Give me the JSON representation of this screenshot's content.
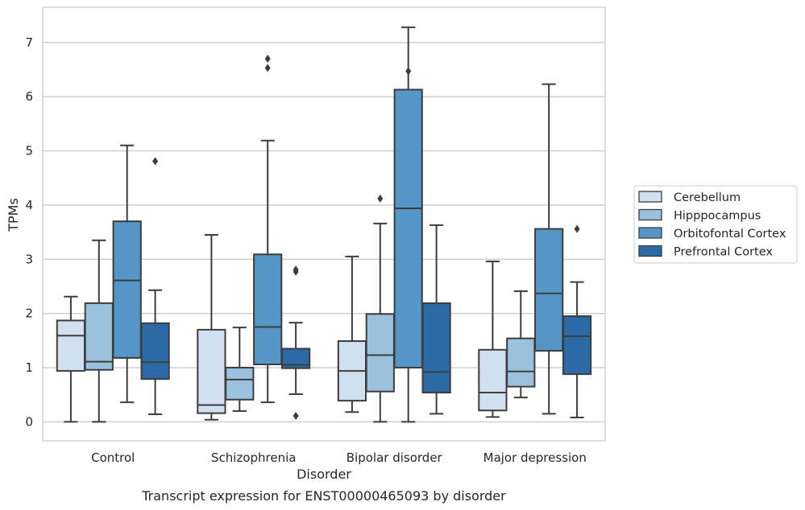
{
  "chart_data": {
    "type": "box",
    "xlabel": "Disorder",
    "ylabel": "TPMs",
    "caption": "Transcript expression for ENST00000465093 by disorder",
    "categories": [
      "Control",
      "Schizophrenia",
      "Bipolar disorder",
      "Major depression"
    ],
    "ylim": [
      -0.35,
      7.65
    ],
    "yticks": [
      0,
      1,
      2,
      3,
      4,
      5,
      6,
      7
    ],
    "grid": "horizontal",
    "legend_position": "right",
    "series": [
      {
        "name": "Cerebellum",
        "color": "#d1e0f1",
        "boxes": [
          {
            "whislo": 0.0,
            "q1": 0.94,
            "med": 1.59,
            "q3": 1.87,
            "whishi": 2.31,
            "fliers": []
          },
          {
            "whislo": 0.04,
            "q1": 0.16,
            "med": 0.31,
            "q3": 1.7,
            "whishi": 3.45,
            "fliers": []
          },
          {
            "whislo": 0.18,
            "q1": 0.39,
            "med": 0.94,
            "q3": 1.49,
            "whishi": 3.05,
            "fliers": []
          },
          {
            "whislo": 0.09,
            "q1": 0.21,
            "med": 0.54,
            "q3": 1.33,
            "whishi": 2.96,
            "fliers": []
          }
        ]
      },
      {
        "name": "Hipppocampus",
        "color": "#9bc1dc",
        "boxes": [
          {
            "whislo": 0.0,
            "q1": 0.96,
            "med": 1.11,
            "q3": 2.19,
            "whishi": 3.35,
            "fliers": []
          },
          {
            "whislo": 0.2,
            "q1": 0.41,
            "med": 0.78,
            "q3": 1.0,
            "whishi": 1.74,
            "fliers": []
          },
          {
            "whislo": 0.0,
            "q1": 0.56,
            "med": 1.23,
            "q3": 1.99,
            "whishi": 3.66,
            "fliers": [
              4.12
            ]
          },
          {
            "whislo": 0.45,
            "q1": 0.65,
            "med": 0.93,
            "q3": 1.54,
            "whishi": 2.41,
            "fliers": []
          }
        ]
      },
      {
        "name": "Orbitofontal Cortex",
        "color": "#5596c6",
        "boxes": [
          {
            "whislo": 0.36,
            "q1": 1.18,
            "med": 2.61,
            "q3": 3.7,
            "whishi": 5.1,
            "fliers": []
          },
          {
            "whislo": 0.36,
            "q1": 1.06,
            "med": 1.75,
            "q3": 3.09,
            "whishi": 5.19,
            "fliers": [
              6.53,
              6.7
            ]
          },
          {
            "whislo": 0.0,
            "q1": 1.0,
            "med": 3.94,
            "q3": 6.13,
            "whishi": 7.28,
            "fliers": [
              6.47
            ]
          },
          {
            "whislo": 0.15,
            "q1": 1.31,
            "med": 2.37,
            "q3": 3.56,
            "whishi": 6.23,
            "fliers": []
          }
        ]
      },
      {
        "name": "Prefrontal Cortex",
        "color": "#2b6aa5",
        "boxes": [
          {
            "whislo": 0.14,
            "q1": 0.79,
            "med": 1.1,
            "q3": 1.82,
            "whishi": 2.43,
            "fliers": [
              4.81
            ]
          },
          {
            "whislo": 0.51,
            "q1": 0.99,
            "med": 1.05,
            "q3": 1.35,
            "whishi": 1.83,
            "fliers": [
              2.77,
              2.81,
              0.11
            ]
          },
          {
            "whislo": 0.15,
            "q1": 0.54,
            "med": 0.92,
            "q3": 2.19,
            "whishi": 3.63,
            "fliers": []
          },
          {
            "whislo": 0.08,
            "q1": 0.88,
            "med": 1.58,
            "q3": 1.95,
            "whishi": 2.58,
            "fliers": [
              3.56
            ]
          }
        ]
      }
    ]
  }
}
